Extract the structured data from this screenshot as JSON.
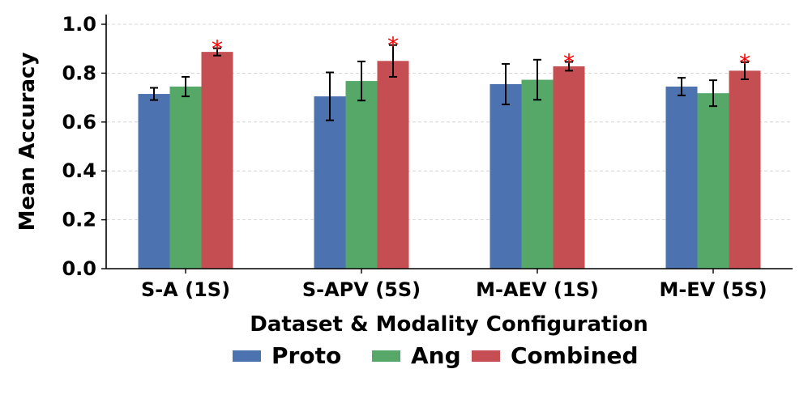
{
  "chart_data": {
    "type": "bar",
    "title": "",
    "xlabel": "Dataset & Modality Configuration",
    "ylabel": "Mean Accuracy",
    "ylim": [
      0,
      1.0
    ],
    "yticks": [
      0.0,
      0.2,
      0.4,
      0.6,
      0.8,
      1.0
    ],
    "ytick_labels": [
      "0.0",
      "0.2",
      "0.4",
      "0.6",
      "0.8",
      "1.0"
    ],
    "grid": "horizontal-dashed",
    "legend_position": "bottom-center",
    "categories": [
      "S-A (1S)",
      "S-APV (5S)",
      "M-AEV (1S)",
      "M-EV (5S)"
    ],
    "series": [
      {
        "name": "Proto",
        "color": "#4c72b0",
        "values": [
          0.715,
          0.705,
          0.755,
          0.745
        ],
        "errors": [
          0.025,
          0.098,
          0.083,
          0.036
        ]
      },
      {
        "name": "Ang",
        "color": "#55a868",
        "values": [
          0.745,
          0.768,
          0.773,
          0.718
        ],
        "errors": [
          0.04,
          0.08,
          0.082,
          0.053
        ]
      },
      {
        "name": "Combined",
        "color": "#c44e52",
        "values": [
          0.887,
          0.85,
          0.828,
          0.81
        ],
        "errors": [
          0.015,
          0.065,
          0.018,
          0.035
        ]
      }
    ],
    "significance_marker": "*",
    "significance_series": "Combined",
    "significance_color": "#ff0000"
  }
}
